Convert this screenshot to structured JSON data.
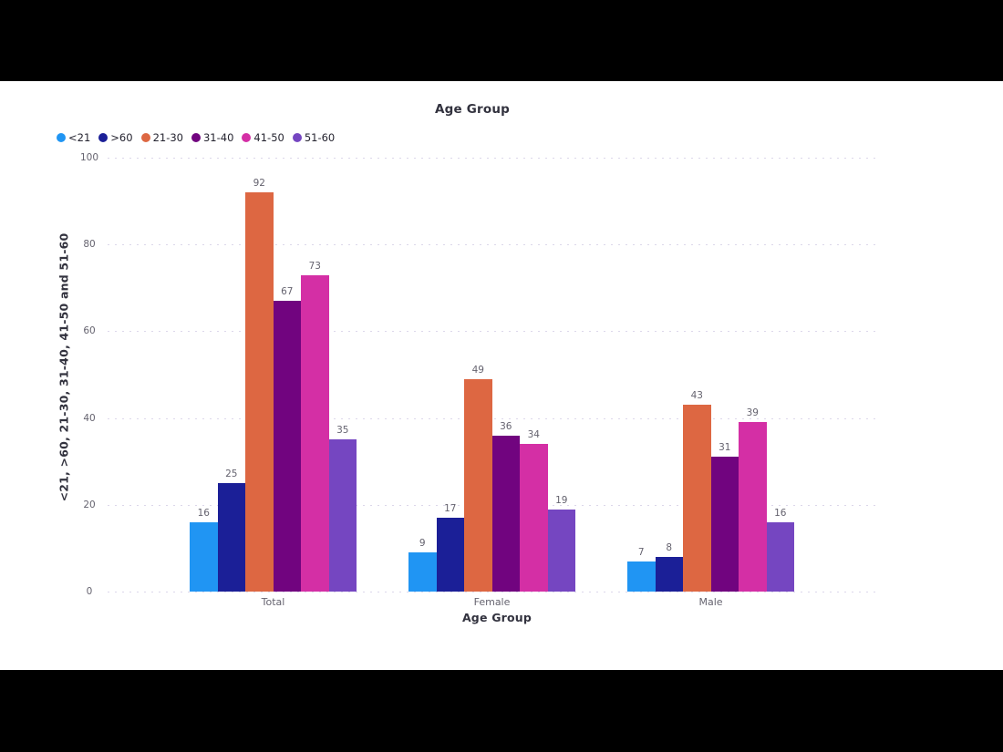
{
  "page": {
    "background_color": "#000000",
    "canvas_color": "#ffffff"
  },
  "chart_data": {
    "type": "bar",
    "title": "Age Group",
    "xlabel": "Age Group",
    "ylabel": "<21, >60, 21-30, 31-40, 41-50 and 51-60",
    "categories": [
      "Total",
      "Female",
      "Male"
    ],
    "series": [
      {
        "name": "<21",
        "color": "#2095F3",
        "values": [
          16,
          9,
          7
        ]
      },
      {
        "name": ">60",
        "color": "#1B1F97",
        "values": [
          25,
          17,
          8
        ]
      },
      {
        "name": "21-30",
        "color": "#DD6742",
        "values": [
          92,
          49,
          43
        ]
      },
      {
        "name": "31-40",
        "color": "#71047F",
        "values": [
          67,
          36,
          31
        ]
      },
      {
        "name": "41-50",
        "color": "#D42FA5",
        "values": [
          73,
          34,
          39
        ]
      },
      {
        "name": "51-60",
        "color": "#7546C1",
        "values": [
          35,
          19,
          16
        ]
      }
    ],
    "ylim": [
      0,
      100
    ],
    "yticks": [
      0,
      20,
      40,
      60,
      80,
      100
    ],
    "grid": "horizontal dotted",
    "legend_position": "top-left",
    "data_labels": true,
    "label_color": "#65636f",
    "title_color": "#32323e"
  }
}
